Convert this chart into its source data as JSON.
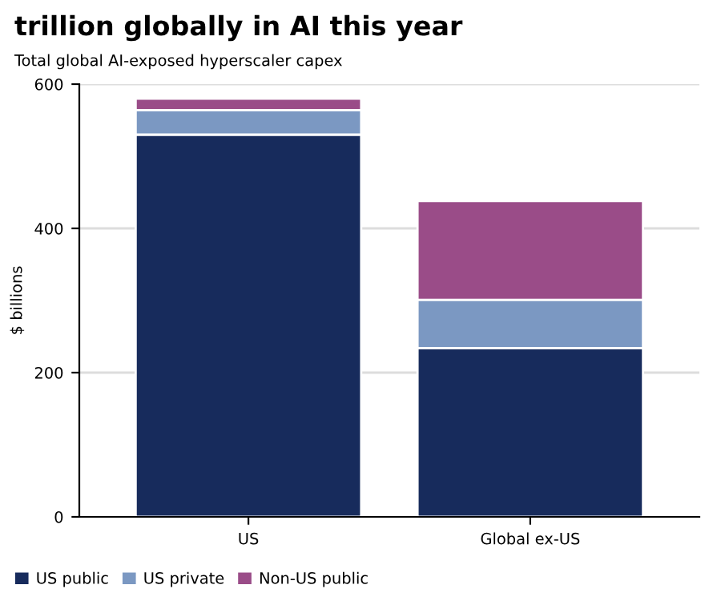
{
  "chart_data": {
    "type": "bar",
    "title": "trillion globally in AI this year",
    "subtitle": "Total global AI-exposed hyperscaler capex",
    "ylabel": "$ billions",
    "categories": [
      "US",
      "Global ex-US"
    ],
    "stacked": true,
    "series": [
      {
        "name": "US public",
        "color": "#172b5c",
        "values": [
          530,
          234
        ]
      },
      {
        "name": "US private",
        "color": "#7b98c2",
        "values": [
          34,
          67
        ]
      },
      {
        "name": "Non-US public",
        "color": "#9a4c88",
        "values": [
          16,
          137
        ]
      }
    ],
    "ylim": [
      0,
      600
    ],
    "yticks": [
      0,
      200,
      400,
      600
    ],
    "grid": "y",
    "legend": "bottom left"
  }
}
